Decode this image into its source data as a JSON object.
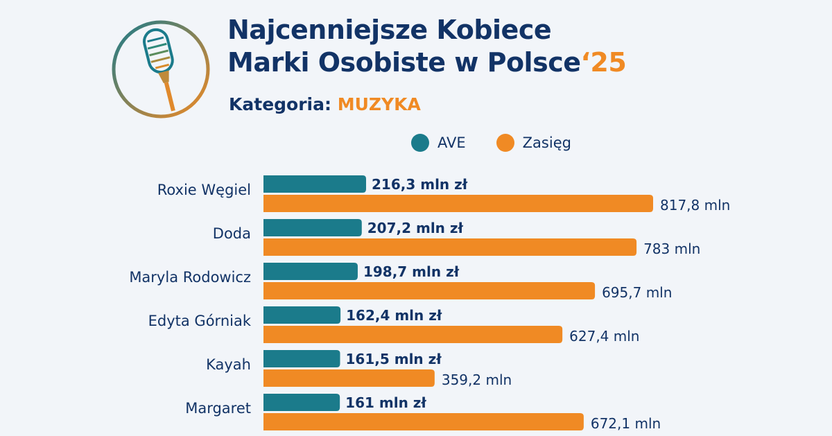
{
  "header": {
    "title_line1": "Najcenniejsze Kobiece",
    "title_line2": "Marki Osobiste w Polsce",
    "title_year": "‘25",
    "category_label": "Kategoria:",
    "category_value": "MUZYKA"
  },
  "colors": {
    "ave": "#1b7b8b",
    "zasieg": "#f08a24",
    "navy": "#123366",
    "background": "#f2f5f9"
  },
  "icons": {
    "logo": "microphone-icon"
  },
  "chart_data": {
    "type": "bar",
    "orientation": "horizontal",
    "categories": [
      "Roxie Węgiel",
      "Doda",
      "Maryla Rodowicz",
      "Edyta Górniak",
      "Kayah",
      "Margaret"
    ],
    "series": [
      {
        "name": "AVE",
        "values": [
          216.3,
          207.2,
          198.7,
          162.4,
          161.5,
          161
        ],
        "labels": [
          "216,3 mln zł",
          "207,2 mln zł",
          "198,7 mln zł",
          "162,4 mln zł",
          "161,5 mln zł",
          "161 mln zł"
        ],
        "color": "#1b7b8b"
      },
      {
        "name": "Zasięg",
        "values": [
          817.8,
          783,
          695.7,
          627.4,
          359.2,
          672.1
        ],
        "labels": [
          "817,8 mln",
          "783 mln",
          "695,7 mln",
          "627,4 mln",
          "359,2 mln",
          "672,1 mln"
        ],
        "color": "#f08a24"
      }
    ],
    "legend_position": "top",
    "grid": false,
    "xlabel": "",
    "ylabel": ""
  }
}
